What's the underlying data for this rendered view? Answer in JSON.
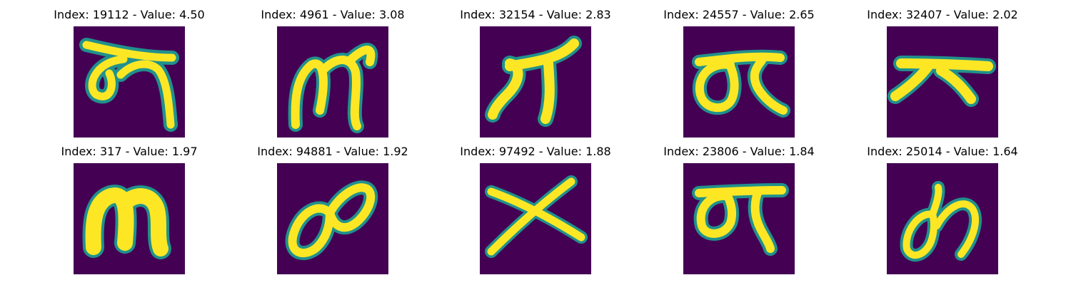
{
  "figure": {
    "background_color": "#ffffff",
    "colormap": {
      "low": "#440154",
      "mid": "#21918c",
      "high": "#fde725"
    },
    "panels": [
      {
        "title": "Index: 19112 - Value: 4.50",
        "glyph": "curl-tilde"
      },
      {
        "title": "Index: 4961 - Value: 3.08",
        "glyph": "m-shape"
      },
      {
        "title": "Index: 32154 - Value: 2.83",
        "glyph": "seven-hook"
      },
      {
        "title": "Index: 24557 - Value: 2.65",
        "glyph": "loop-bar"
      },
      {
        "title": "Index: 32407 - Value: 2.02",
        "glyph": "slanted-cross"
      },
      {
        "title": "Index: 317 - Value: 1.97",
        "glyph": "m-bold"
      },
      {
        "title": "Index: 94881 - Value: 1.92",
        "glyph": "double-loop"
      },
      {
        "title": "Index: 97492 - Value: 1.88",
        "glyph": "x-cross"
      },
      {
        "title": "Index: 23806 - Value: 1.84",
        "glyph": "loop-bar-tail"
      },
      {
        "title": "Index: 25014 - Value: 1.64",
        "glyph": "loop-hook"
      }
    ]
  }
}
